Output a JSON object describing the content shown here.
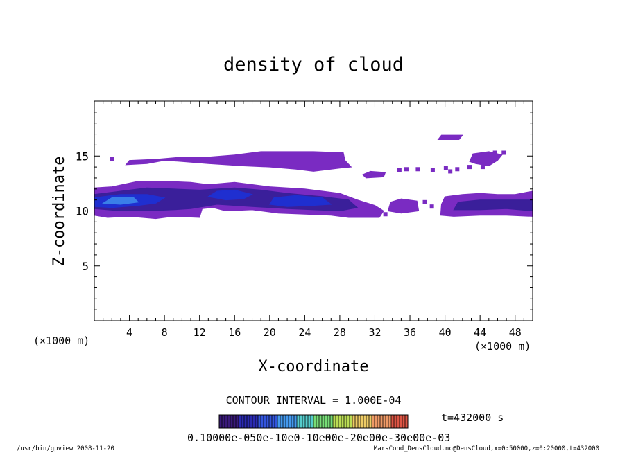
{
  "chart_data": {
    "type": "heatmap",
    "title": "density of cloud",
    "xlabel": "X-coordinate",
    "ylabel": "Z-coordinate",
    "x_unit_left": "(×1000 m)",
    "x_unit_right": "(×1000 m)",
    "xlim": [
      0,
      50
    ],
    "ylim": [
      0,
      20
    ],
    "xticks": [
      4,
      8,
      12,
      16,
      20,
      24,
      28,
      32,
      36,
      40,
      44,
      48
    ],
    "xtick_labels": [
      "4",
      "8",
      "12",
      "16",
      "20",
      "24",
      "28",
      "32",
      "36",
      "40",
      "44",
      "48"
    ],
    "yticks": [
      5,
      10,
      15
    ],
    "ytick_labels": [
      "5",
      "10",
      "15"
    ],
    "contour_interval": "CONTOUR INTERVAL = 1.000E-04",
    "time_label": "t=432000 s",
    "colorbar_labels": "0.10000e-050e-10e0-10e00e-20e00e-30e00e-03",
    "colorbar_colors": [
      "#3a1a7a",
      "#2a2ab0",
      "#3355dd",
      "#4499ee",
      "#55cccc",
      "#77dd77",
      "#bbdd55",
      "#eecc66",
      "#ee9966",
      "#dd5544"
    ],
    "regions": [
      {
        "level": 1,
        "color": "#7a2bc2",
        "points": [
          [
            0.0,
            9.6
          ],
          [
            1.5,
            9.4
          ],
          [
            4,
            9.5
          ],
          [
            7,
            9.3
          ],
          [
            9,
            9.5
          ],
          [
            12,
            9.4
          ],
          [
            12.3,
            10.2
          ],
          [
            13.5,
            10.3
          ],
          [
            15,
            10.0
          ],
          [
            18,
            10.1
          ],
          [
            21,
            9.8
          ],
          [
            24,
            9.7
          ],
          [
            27,
            9.6
          ],
          [
            29,
            9.4
          ],
          [
            32.5,
            9.4
          ],
          [
            33,
            10.0
          ],
          [
            32,
            10.5
          ],
          [
            30,
            11.0
          ],
          [
            28,
            11.6
          ],
          [
            24,
            12.0
          ],
          [
            20,
            12.2
          ],
          [
            16,
            12.6
          ],
          [
            13,
            12.4
          ],
          [
            11,
            12.6
          ],
          [
            8,
            12.7
          ],
          [
            5,
            12.7
          ],
          [
            2,
            12.2
          ],
          [
            0,
            12.1
          ]
        ]
      },
      {
        "level": 1,
        "color": "#7a2bc2",
        "points": [
          [
            3.6,
            14.2
          ],
          [
            6,
            14.3
          ],
          [
            8,
            14.6
          ],
          [
            10,
            14.5
          ],
          [
            13,
            14.3
          ],
          [
            17,
            14.1
          ],
          [
            20,
            14.0
          ],
          [
            23,
            13.8
          ],
          [
            25,
            13.6
          ],
          [
            28,
            13.9
          ],
          [
            29.3,
            14.0
          ],
          [
            28.6,
            14.6
          ],
          [
            28.4,
            15.3
          ],
          [
            25,
            15.4
          ],
          [
            22,
            15.4
          ],
          [
            19,
            15.4
          ],
          [
            16,
            15.1
          ],
          [
            13,
            14.9
          ],
          [
            10,
            14.9
          ],
          [
            7,
            14.7
          ],
          [
            4,
            14.6
          ]
        ]
      },
      {
        "level": 1,
        "color": "#7a2bc2",
        "points": [
          [
            39.2,
            16.5
          ],
          [
            39.6,
            16.9
          ],
          [
            42,
            16.9
          ],
          [
            41.6,
            16.5
          ]
        ]
      },
      {
        "level": 1,
        "color": "#7a2bc2",
        "points": [
          [
            42.8,
            14.5
          ],
          [
            43.2,
            15.2
          ],
          [
            45,
            15.4
          ],
          [
            46.5,
            15.1
          ],
          [
            46,
            14.6
          ],
          [
            45,
            14.1
          ],
          [
            43.5,
            14.3
          ]
        ]
      },
      {
        "level": 1,
        "color": "#7a2bc2",
        "points": [
          [
            31,
            13.0
          ],
          [
            33,
            13.1
          ],
          [
            33.2,
            13.5
          ],
          [
            31.5,
            13.6
          ],
          [
            30.6,
            13.3
          ]
        ]
      },
      {
        "level": 1,
        "color": "#7a2bc2",
        "points": [
          [
            39.5,
            9.6
          ],
          [
            41,
            9.5
          ],
          [
            44,
            9.6
          ],
          [
            47,
            9.6
          ],
          [
            50,
            9.5
          ],
          [
            50,
            11.8
          ],
          [
            48,
            11.5
          ],
          [
            46,
            11.5
          ],
          [
            44,
            11.6
          ],
          [
            42,
            11.5
          ],
          [
            40,
            11.3
          ],
          [
            39.6,
            10.6
          ]
        ]
      },
      {
        "level": 1,
        "color": "#7a2bc2",
        "points": [
          [
            33.5,
            10.0
          ],
          [
            35,
            9.8
          ],
          [
            37,
            10.0
          ],
          [
            36.8,
            10.9
          ],
          [
            35,
            11.1
          ],
          [
            33.8,
            10.8
          ]
        ]
      },
      {
        "level": 2,
        "color": "#3a1f9a",
        "points": [
          [
            0,
            10.2
          ],
          [
            3,
            10.0
          ],
          [
            6,
            10.0
          ],
          [
            9,
            10.1
          ],
          [
            11,
            10.2
          ],
          [
            14,
            10.6
          ],
          [
            18,
            10.4
          ],
          [
            22,
            10.2
          ],
          [
            25,
            10.1
          ],
          [
            28,
            10.0
          ],
          [
            30,
            10.3
          ],
          [
            29,
            11.0
          ],
          [
            26,
            11.3
          ],
          [
            22,
            11.6
          ],
          [
            19,
            11.9
          ],
          [
            16,
            12.1
          ],
          [
            12,
            11.9
          ],
          [
            9,
            12.0
          ],
          [
            6,
            12.1
          ],
          [
            3,
            11.8
          ],
          [
            0,
            11.5
          ]
        ]
      },
      {
        "level": 2,
        "color": "#3a1f9a",
        "points": [
          [
            41,
            10.1
          ],
          [
            44,
            10.1
          ],
          [
            47,
            10.2
          ],
          [
            50,
            10.0
          ],
          [
            50,
            11.0
          ],
          [
            47,
            11.0
          ],
          [
            44,
            11.0
          ],
          [
            41.5,
            10.8
          ]
        ]
      },
      {
        "level": 3,
        "color": "#1f2fd0",
        "points": [
          [
            0,
            10.4
          ],
          [
            2,
            10.3
          ],
          [
            5,
            10.5
          ],
          [
            7,
            10.7
          ],
          [
            8,
            11.2
          ],
          [
            6,
            11.5
          ],
          [
            3,
            11.5
          ],
          [
            0,
            11.2
          ]
        ]
      },
      {
        "level": 3,
        "color": "#1f2fd0",
        "points": [
          [
            13,
            11.3
          ],
          [
            15,
            11.0
          ],
          [
            17,
            11.1
          ],
          [
            18,
            11.5
          ],
          [
            16,
            11.9
          ],
          [
            14,
            11.8
          ]
        ]
      },
      {
        "level": 3,
        "color": "#1f2fd0",
        "points": [
          [
            20,
            10.6
          ],
          [
            22,
            10.4
          ],
          [
            25,
            10.5
          ],
          [
            27,
            10.6
          ],
          [
            26,
            11.2
          ],
          [
            23,
            11.4
          ],
          [
            20.5,
            11.2
          ]
        ]
      },
      {
        "level": 4,
        "color": "#3a7fe8",
        "points": [
          [
            1,
            10.7
          ],
          [
            3,
            10.6
          ],
          [
            5,
            10.8
          ],
          [
            4.5,
            11.2
          ],
          [
            2,
            11.2
          ]
        ]
      }
    ],
    "specks": [
      [
        2.0,
        14.7
      ],
      [
        34.8,
        13.7
      ],
      [
        35.6,
        13.8
      ],
      [
        36.9,
        13.8
      ],
      [
        38.6,
        13.7
      ],
      [
        40.1,
        13.9
      ],
      [
        40.6,
        13.6
      ],
      [
        41.4,
        13.8
      ],
      [
        44.3,
        14.0
      ],
      [
        45.7,
        15.3
      ],
      [
        46.7,
        15.3
      ],
      [
        33.2,
        9.7
      ],
      [
        38.5,
        10.4
      ],
      [
        37.7,
        10.8
      ],
      [
        42.8,
        14.0
      ],
      [
        31.2,
        10.1
      ]
    ]
  },
  "footer": {
    "left": "/usr/bin/gpview  2008-11-20",
    "right": "MarsCond_DensCloud.nc@DensCloud,x=0:50000,z=0:20000,t=432000"
  }
}
